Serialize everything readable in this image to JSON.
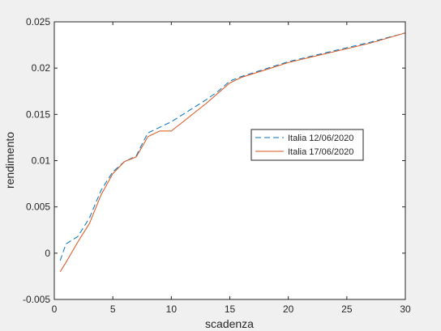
{
  "chart_data": {
    "type": "line",
    "title": "",
    "xlabel": "scadenza",
    "ylabel": "rendimento",
    "xlim": [
      0,
      30
    ],
    "ylim": [
      -0.005,
      0.025
    ],
    "xticks": [
      0,
      5,
      10,
      15,
      20,
      25,
      30
    ],
    "xtick_labels": [
      "0",
      "5",
      "10",
      "15",
      "20",
      "25",
      "30"
    ],
    "yticks": [
      -0.005,
      0,
      0.005,
      0.01,
      0.015,
      0.02,
      0.025
    ],
    "ytick_labels": [
      "-0.005",
      "0",
      "0.005",
      "0.01",
      "0.015",
      "0.02",
      "0.025"
    ],
    "grid": false,
    "legend_position": "right",
    "series": [
      {
        "name": "Italia 12/06/2020",
        "color": "#0072bd",
        "style": "dashed",
        "x": [
          0.5,
          1,
          2,
          3,
          4,
          5,
          6,
          7,
          7.5,
          8,
          9,
          10,
          11,
          12,
          13,
          14,
          15,
          16,
          17,
          18,
          19,
          20,
          22,
          25,
          27,
          30
        ],
        "y": [
          -0.0008,
          0.001,
          0.0018,
          0.0038,
          0.0068,
          0.0088,
          0.0099,
          0.0105,
          0.0118,
          0.013,
          0.0136,
          0.0142,
          0.015,
          0.0158,
          0.0166,
          0.0175,
          0.0186,
          0.0191,
          0.0195,
          0.0199,
          0.0203,
          0.0207,
          0.0213,
          0.0222,
          0.0228,
          0.0238
        ]
      },
      {
        "name": "Italia 17/06/2020",
        "color": "#d95319",
        "style": "solid",
        "x": [
          0.5,
          1,
          2,
          3,
          4,
          5,
          6,
          7,
          7.5,
          8,
          9,
          10,
          11,
          12,
          13,
          14,
          15,
          16,
          17,
          18,
          19,
          20,
          22,
          25,
          27,
          30
        ],
        "y": [
          -0.002,
          -0.001,
          0.0012,
          0.0032,
          0.0063,
          0.0086,
          0.0099,
          0.0104,
          0.0115,
          0.0126,
          0.0132,
          0.0132,
          0.0142,
          0.0152,
          0.0162,
          0.0173,
          0.0184,
          0.019,
          0.0194,
          0.0198,
          0.0202,
          0.0206,
          0.0212,
          0.0221,
          0.0227,
          0.0238
        ]
      }
    ]
  }
}
